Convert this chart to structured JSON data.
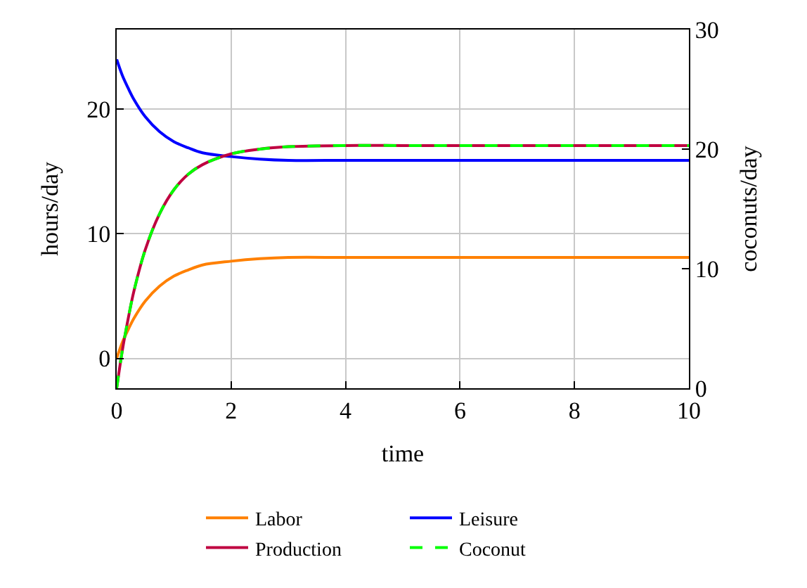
{
  "chart_data": {
    "type": "line",
    "xlabel": "time",
    "ylabel": "hours/day",
    "y2label": "coconuts/day",
    "x": [
      0,
      0.1,
      0.2,
      0.3,
      0.5,
      0.75,
      1,
      1.25,
      1.5,
      2,
      2.5,
      3,
      4,
      5,
      6,
      7,
      8,
      9,
      10
    ],
    "series": [
      {
        "name": "Labor",
        "color": "#ff8000",
        "values": [
          0,
          1.3,
          2.3,
          3.2,
          4.6,
          5.8,
          6.6,
          7.1,
          7.5,
          7.8,
          8.0,
          8.1,
          8.1,
          8.1,
          8.1,
          8.1,
          8.1,
          8.1,
          8.1
        ]
      },
      {
        "name": "Leisure",
        "color": "#0000ff",
        "values": [
          24,
          22.7,
          21.7,
          20.8,
          19.4,
          18.2,
          17.4,
          16.9,
          16.5,
          16.2,
          16.0,
          15.9,
          15.9,
          15.9,
          15.9,
          15.9,
          15.9,
          15.9,
          15.9
        ]
      },
      {
        "name": "Production",
        "color": "#bf0040",
        "axis": "y2",
        "values": [
          0,
          3.2,
          5.8,
          8.1,
          11.6,
          14.6,
          16.6,
          17.9,
          18.7,
          19.6,
          20.0,
          20.2,
          20.3,
          20.3,
          20.3,
          20.3,
          20.3,
          20.3,
          20.3
        ]
      },
      {
        "name": "Coconut",
        "color": "#00ff00",
        "axis": "y2",
        "line_style": "dashed",
        "values": [
          0,
          3.2,
          5.8,
          8.1,
          11.6,
          14.6,
          16.6,
          17.9,
          18.7,
          19.6,
          20.0,
          20.2,
          20.3,
          20.3,
          20.3,
          20.3,
          20.3,
          20.3,
          20.3
        ]
      }
    ],
    "xlim": [
      0,
      10
    ],
    "xticks": [
      0,
      2,
      4,
      6,
      8,
      10
    ],
    "ylim": [
      -2.4,
      26.4
    ],
    "yticks": [
      0,
      10,
      20
    ],
    "y2lim": [
      0,
      30
    ],
    "y2ticks": [
      0,
      10,
      20,
      30
    ],
    "grid": true,
    "legend": "bottom",
    "marker": "none"
  }
}
